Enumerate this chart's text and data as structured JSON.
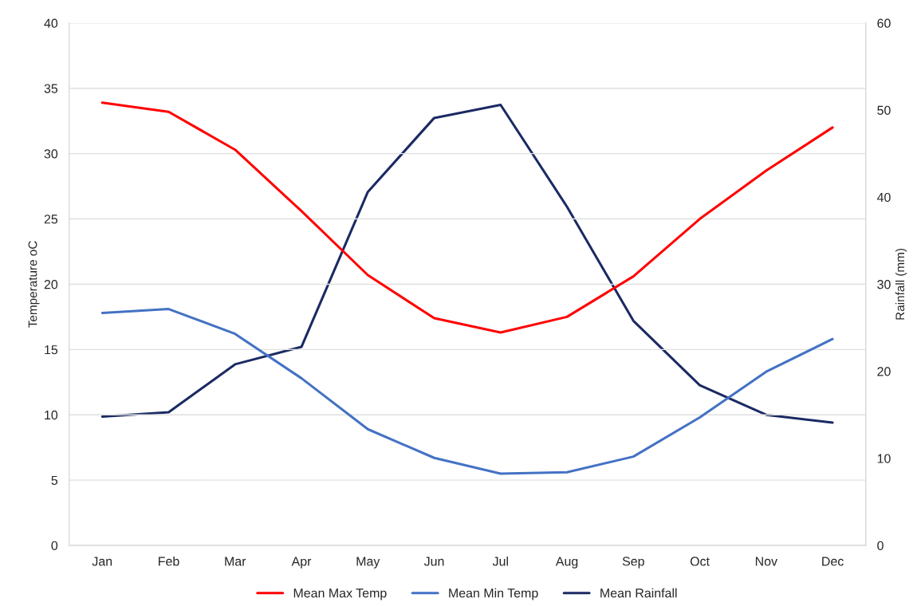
{
  "chart_data": {
    "type": "line",
    "categories": [
      "Jan",
      "Feb",
      "Mar",
      "Apr",
      "May",
      "Jun",
      "Jul",
      "Aug",
      "Sep",
      "Oct",
      "Nov",
      "Dec"
    ],
    "series": [
      {
        "name": "Mean Max Temp",
        "color": "#ff0000",
        "values": [
          33.9,
          33.2,
          30.3,
          25.6,
          20.7,
          17.4,
          16.3,
          17.5,
          20.6,
          25.0,
          28.7,
          32.0
        ]
      },
      {
        "name": "Mean Min Temp",
        "color": "#4472c4",
        "values": [
          17.8,
          18.1,
          16.2,
          12.8,
          8.9,
          6.7,
          5.5,
          5.6,
          6.8,
          9.8,
          13.3,
          15.8
        ]
      },
      {
        "name": "Mean Rainfall",
        "color": "#1b2a63",
        "axis": "y2",
        "values": [
          14.8,
          15.3,
          20.8,
          22.8,
          40.6,
          49.1,
          50.6,
          38.9,
          25.8,
          18.4,
          15.0,
          14.1
        ]
      }
    ],
    "ylabel": "Temperature oC",
    "y2label": "Rainfall (mm)",
    "ylim": [
      0,
      40
    ],
    "yticks": [
      0,
      5,
      10,
      15,
      20,
      25,
      30,
      35,
      40
    ],
    "y2lim": [
      0,
      60
    ],
    "y2ticks": [
      0,
      10,
      20,
      30,
      40,
      50,
      60
    ],
    "grid": "y",
    "legend": "bottom",
    "marker": "none",
    "line_style": "solid"
  }
}
